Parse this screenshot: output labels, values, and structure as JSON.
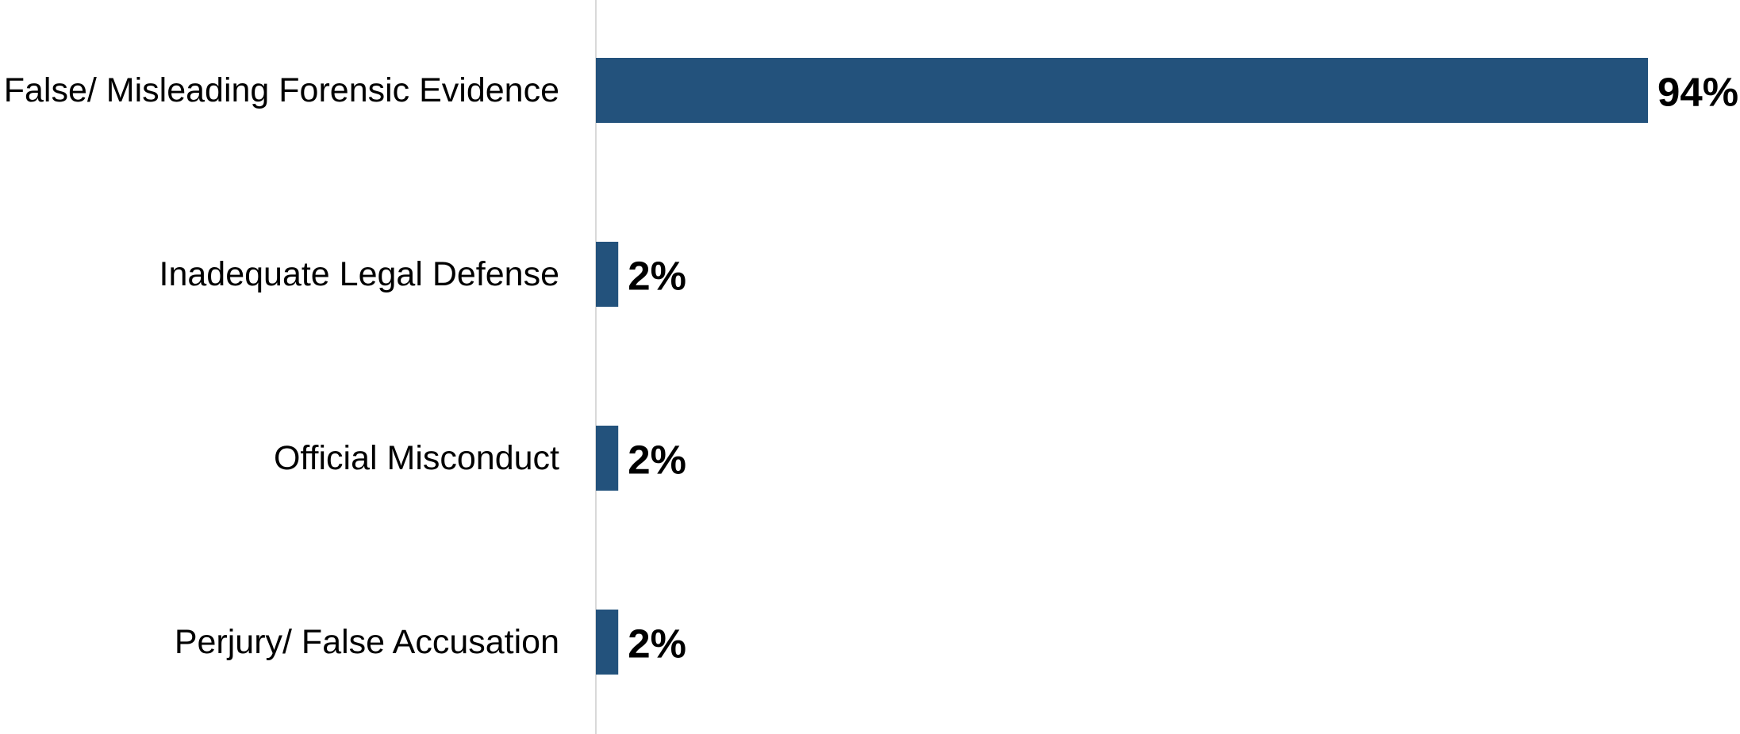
{
  "chart_data": {
    "type": "bar",
    "orientation": "horizontal",
    "categories": [
      "False/ Misleading Forensic Evidence",
      "Inadequate Legal Defense",
      "Official Misconduct",
      "Perjury/ False Accusation"
    ],
    "values": [
      94,
      2,
      2,
      2
    ],
    "value_labels": [
      "94%",
      "2%",
      "2%",
      "2%"
    ],
    "unit": "%",
    "xlim": [
      0,
      94
    ],
    "grid": false,
    "legend": "none",
    "title": "",
    "xlabel": "",
    "ylabel": "",
    "colors": {
      "bar": "#23527c",
      "axis": "#d9d9d9",
      "text": "#000000"
    }
  }
}
